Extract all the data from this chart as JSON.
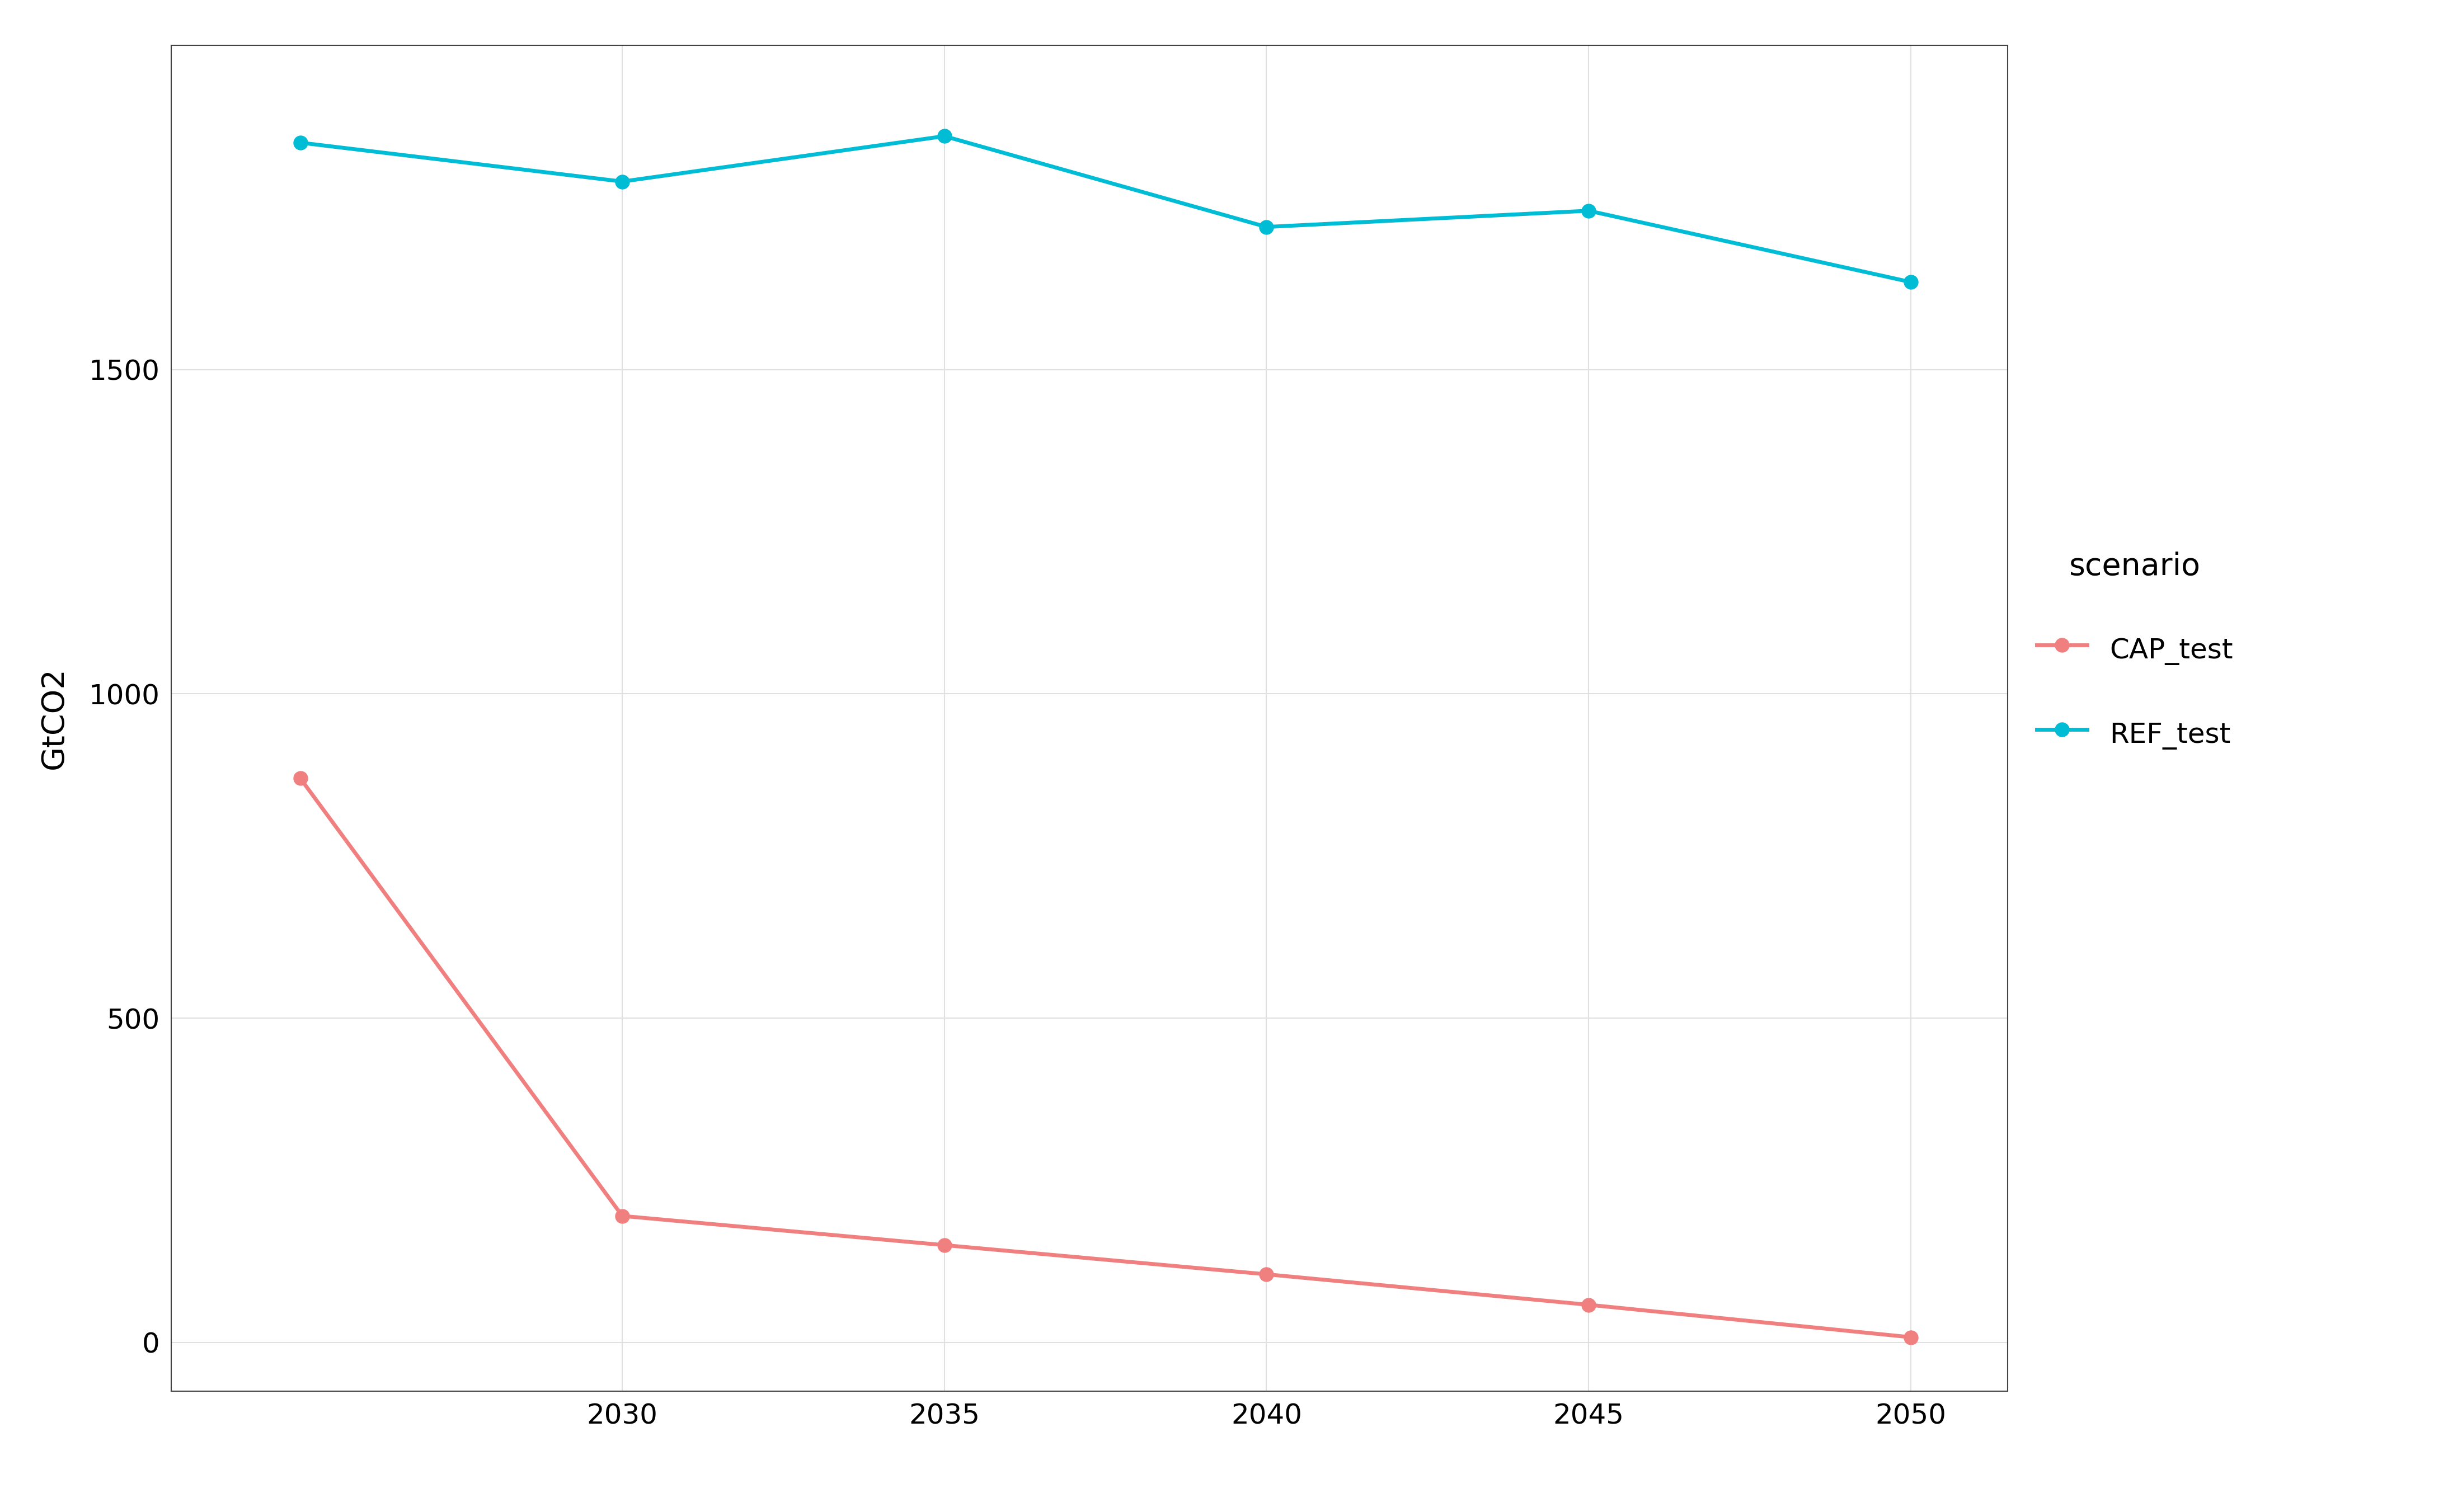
{
  "cap_x": [
    2025,
    2030,
    2035,
    2040,
    2045,
    2050
  ],
  "cap_y": [
    870,
    195,
    150,
    105,
    58,
    8
  ],
  "ref_x": [
    2025,
    2030,
    2035,
    2040,
    2045,
    2050
  ],
  "ref_y": [
    1850,
    1790,
    1860,
    1720,
    1745,
    1635
  ],
  "cap_color": "#F08080",
  "ref_color": "#00BCD4",
  "line_width": 5.0,
  "marker_size": 18,
  "ylabel": "GtCO2",
  "legend_title": "scenario",
  "legend_labels": [
    "CAP_test",
    "REF_test"
  ],
  "ylim": [
    -75,
    2000
  ],
  "yticks": [
    0,
    500,
    1000,
    1500
  ],
  "xlim": [
    2023.0,
    2051.5
  ],
  "xticks": [
    2030,
    2035,
    2040,
    2045,
    2050
  ],
  "background_color": "#ffffff",
  "panel_color": "#ffffff",
  "grid_color": "#e0e0e0",
  "tick_label_fontsize": 36,
  "axis_label_fontsize": 40,
  "legend_fontsize": 36,
  "legend_title_fontsize": 40
}
